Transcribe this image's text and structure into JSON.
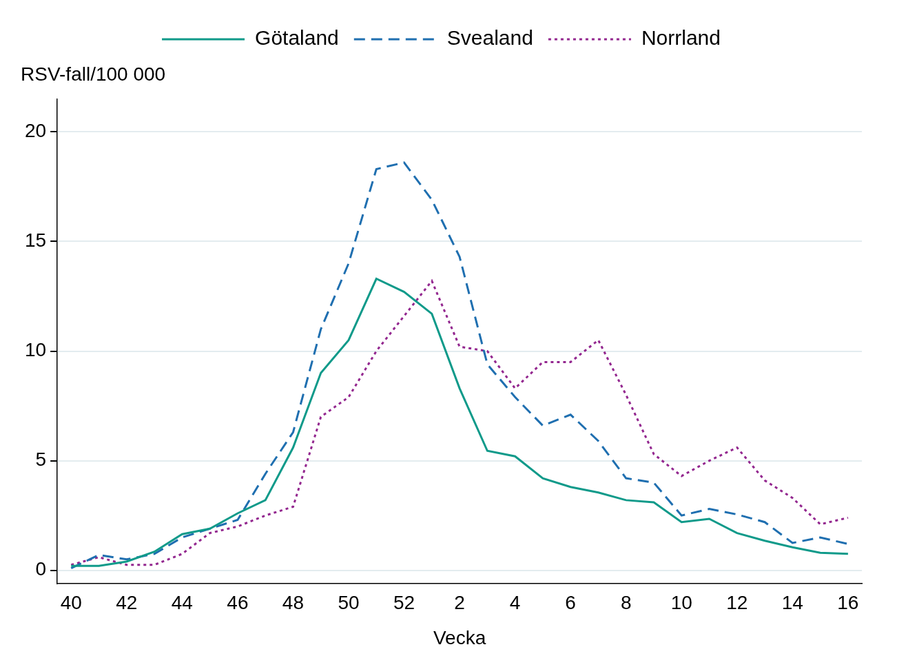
{
  "chart_data": {
    "type": "line",
    "y_label": "RSV-fall/100 000",
    "x_label": "Vecka",
    "categories": [
      "40",
      null,
      "42",
      null,
      "44",
      null,
      "46",
      null,
      "48",
      null,
      "50",
      null,
      "52",
      null,
      "2",
      null,
      "4",
      null,
      "6",
      null,
      "8",
      null,
      "10",
      null,
      "12",
      null,
      "14",
      null,
      "16"
    ],
    "series": [
      {
        "name": "Götaland",
        "color": "#109a8a",
        "line_style": "solid",
        "values": [
          0.2,
          0.2,
          0.4,
          0.85,
          1.65,
          1.9,
          2.6,
          3.2,
          5.6,
          9.0,
          10.5,
          13.3,
          12.7,
          11.7,
          8.3,
          5.45,
          5.2,
          4.2,
          3.8,
          3.55,
          3.2,
          3.1,
          2.2,
          2.35,
          1.7,
          1.35,
          1.05,
          0.8,
          0.75
        ]
      },
      {
        "name": "Svealand",
        "color": "#1f6fb0",
        "line_style": "dashed",
        "values": [
          0.1,
          0.7,
          0.5,
          0.75,
          1.5,
          1.9,
          2.3,
          4.4,
          6.3,
          11.0,
          14.0,
          18.3,
          18.6,
          16.9,
          14.3,
          9.4,
          7.9,
          6.6,
          7.1,
          5.9,
          4.2,
          4.0,
          2.5,
          2.8,
          2.55,
          2.2,
          1.25,
          1.5,
          1.2
        ]
      },
      {
        "name": "Norrland",
        "color": "#93278f",
        "line_style": "dotted",
        "values": [
          0.25,
          0.6,
          0.25,
          0.25,
          0.75,
          1.7,
          2.0,
          2.5,
          2.9,
          7.0,
          7.9,
          10.0,
          11.6,
          13.2,
          10.2,
          10.0,
          8.3,
          9.5,
          9.5,
          10.5,
          8.0,
          5.3,
          4.3,
          5.0,
          5.6,
          4.1,
          3.3,
          2.1,
          2.4
        ]
      }
    ],
    "ylim": [
      -0.6,
      21.5
    ],
    "yticks": [
      0,
      5,
      10,
      15,
      20
    ],
    "grid": true,
    "legend": "top"
  }
}
